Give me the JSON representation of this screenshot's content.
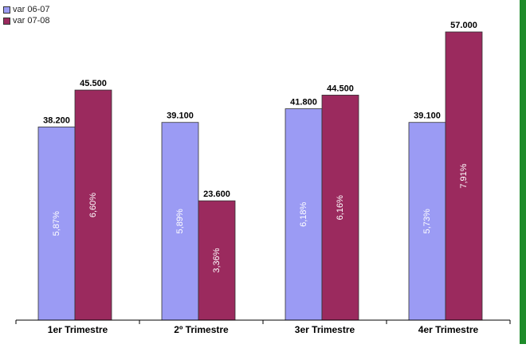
{
  "colors": {
    "series1": "#9b9bf4",
    "series2": "#9b2a5e",
    "axis": "#000000",
    "strip": "#1e8c2a"
  },
  "chart_data": {
    "type": "bar",
    "categories": [
      "1er Trimestre",
      "2º Trimestre",
      "3er Trimestre",
      "4er Trimestre"
    ],
    "series": [
      {
        "name": "var 06-07",
        "values": [
          38200,
          39100,
          41800,
          39100
        ],
        "value_labels": [
          "38.200",
          "39.100",
          "41.800",
          "39.100"
        ],
        "inner_labels": [
          "5,87%",
          "5,89%",
          "6,18%",
          "5,73%"
        ]
      },
      {
        "name": "var 07-08",
        "values": [
          45500,
          23600,
          44500,
          57000
        ],
        "value_labels": [
          "45.500",
          "23.600",
          "44.500",
          "57.000"
        ],
        "inner_labels": [
          "6,60%",
          "3,36%",
          "6,16%",
          "7,91%"
        ]
      }
    ],
    "ylim": [
      0,
      60000
    ],
    "grid": false,
    "legend_position": "top-left"
  }
}
